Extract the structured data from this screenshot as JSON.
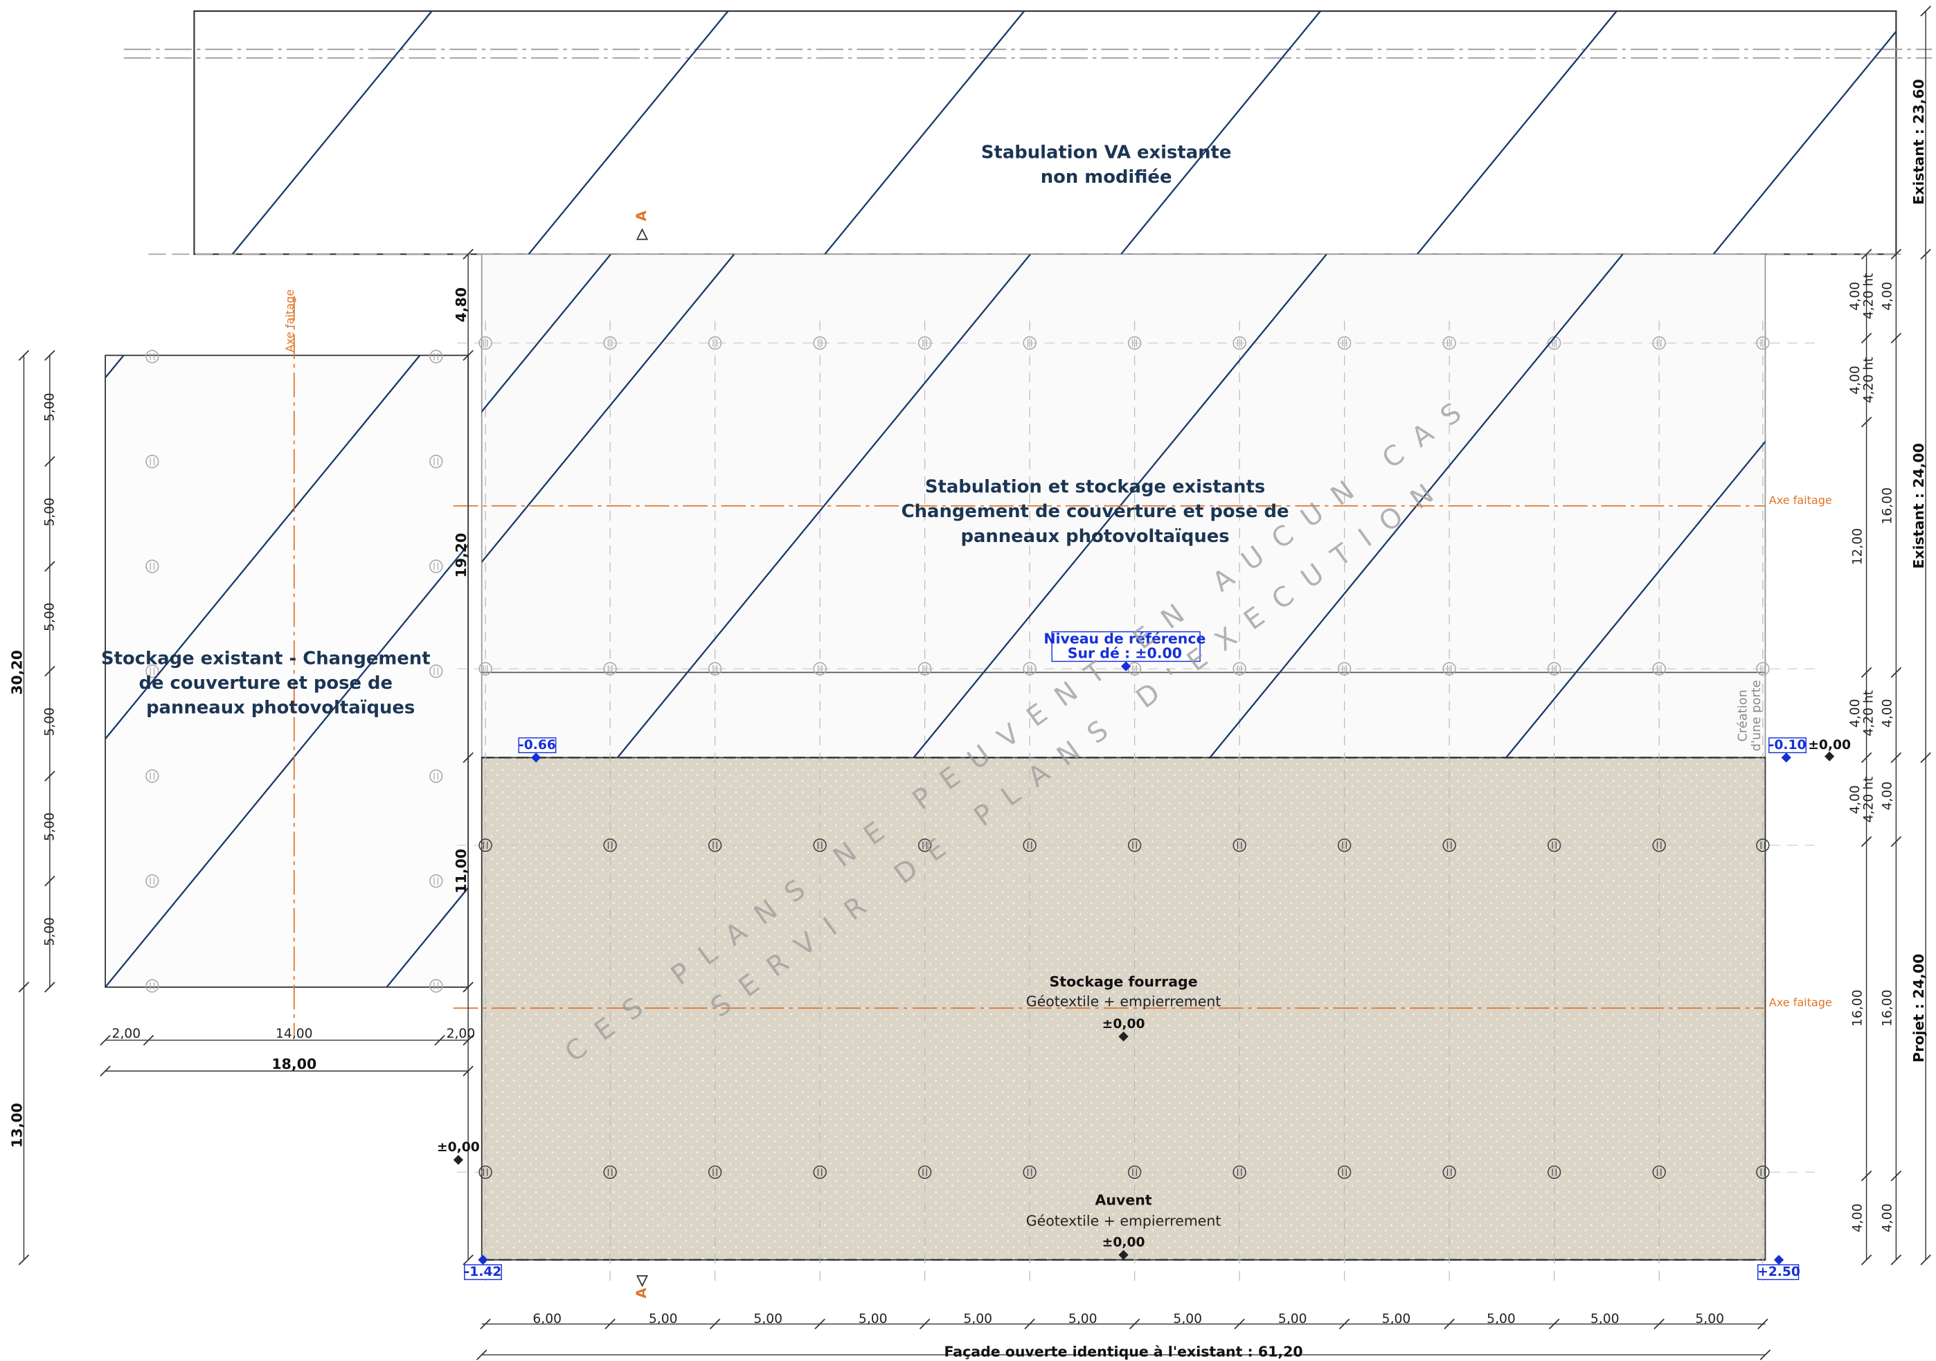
{
  "labels": {
    "stabulation_va": [
      "Stabulation VA existante",
      "non modifiée"
    ],
    "stabulation_stockage": [
      "Stabulation et stockage existants",
      "Changement de couverture et pose de",
      "panneaux photovoltaïques"
    ],
    "stockage_existant": [
      "Stockage existant - Changement",
      "de couverture et pose de",
      "panneaux photovoltaïques"
    ],
    "stockage_fourrage": {
      "title": "Stockage fourrage",
      "detail": "Géotextile + empierrement",
      "level": "±0,00"
    },
    "auvent": {
      "title": "Auvent",
      "detail": "Géotextile + empierrement",
      "level": "±0,00"
    },
    "reference": [
      "Niveau de référence",
      "Sur dé : ±0.00"
    ],
    "porte": [
      "Création",
      "d'une porte"
    ]
  },
  "levels": [
    "-0.66",
    "-0.10",
    "±0,00",
    "±0,00",
    "-1.42",
    "+2.50"
  ],
  "axes": [
    "Axe faitage",
    "Axe faitage",
    "Axe faitage"
  ],
  "sections": [
    "A",
    "A"
  ],
  "dimensions": {
    "left": [
      "30,20",
      "13,00"
    ],
    "left_bays": [
      "5,00",
      "5,00",
      "5,00",
      "5,00",
      "5,00",
      "5,00"
    ],
    "middle": [
      "4,80",
      "19,20",
      "11,00"
    ],
    "bottom_left": [
      "2,00",
      "14,00",
      "2,00",
      "18,00"
    ],
    "bottom": [
      "6,00",
      "5,00",
      "5,00",
      "5,00",
      "5,00",
      "5,00",
      "5,00",
      "5,00",
      "5,00",
      "5,00",
      "5,00",
      "5,00"
    ],
    "facade": "Façade ouverte identique à l'existant : 61,20",
    "right_a": [
      "4,00",
      "4,20 ht",
      "4,00",
      "4,20 ht",
      "12,00",
      "4,00",
      "4,20 ht",
      "4,00",
      "4,20 ht",
      "16,00",
      "4,00"
    ],
    "right_b": [
      "4,00",
      "16,00",
      "4,00",
      "4,00",
      "16,00",
      "4,00"
    ],
    "right_outer": [
      "Existant : 23,60",
      "Existant : 24,00",
      "Projet : 24,00"
    ]
  },
  "watermark": [
    "CES PLANS NE PEUVENT EN AUCUN CAS",
    "SERVIR DE PLANS D'EXECUTION"
  ]
}
